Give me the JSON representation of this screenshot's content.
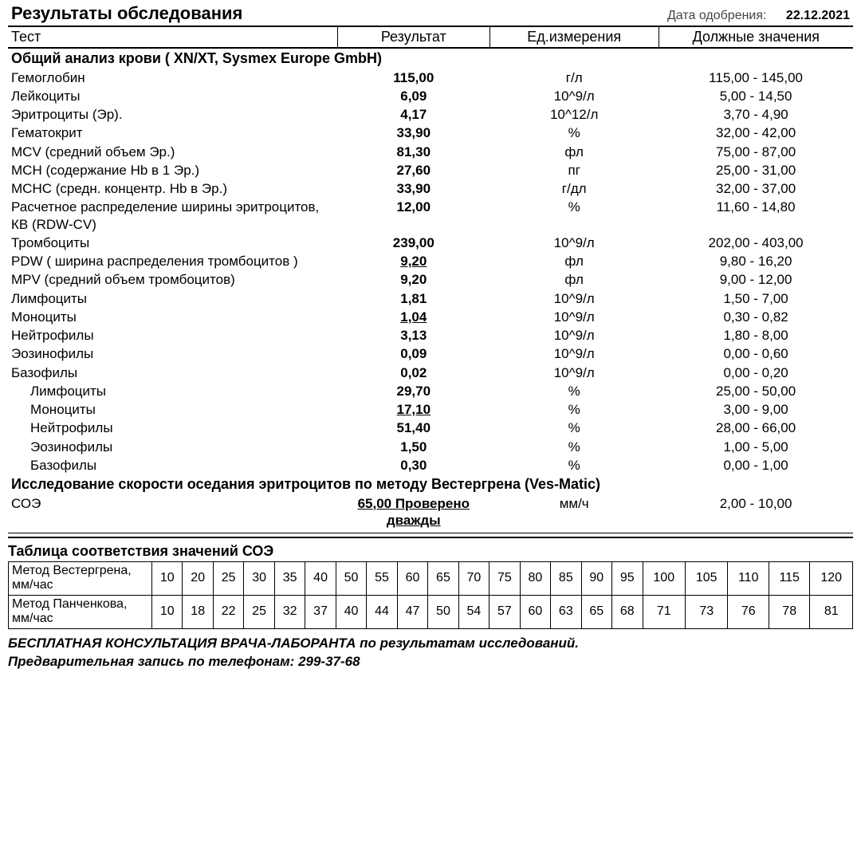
{
  "header": {
    "report_title": "Результаты обследования",
    "date_label": "Дата одобрения:",
    "date_value": "22.12.2021",
    "columns": {
      "test": "Тест",
      "result": "Результат",
      "unit": "Ед.измерения",
      "ref": "Должные значения"
    }
  },
  "sections": [
    {
      "title": "Общий анализ крови ( XN/XT, Sysmex  Europe GmbH)",
      "rows": [
        {
          "test": "Гемоглобин",
          "result": "115,00",
          "unit": "г/л",
          "ref": "115,00 - 145,00"
        },
        {
          "test": "Лейкоциты",
          "result": "6,09",
          "unit": "10^9/л",
          "ref": "5,00 - 14,50"
        },
        {
          "test": "Эритроциты (Эр).",
          "result": "4,17",
          "unit": "10^12/л",
          "ref": "3,70 - 4,90"
        },
        {
          "test": "Гематокрит",
          "result": "33,90",
          "unit": "%",
          "ref": "32,00 - 42,00"
        },
        {
          "test": "MCV (средний объем Эр.)",
          "result": "81,30",
          "unit": "фл",
          "ref": "75,00 - 87,00"
        },
        {
          "test": "MCH (содержание Hb в 1 Эр.)",
          "result": "27,60",
          "unit": "пг",
          "ref": "25,00 - 31,00"
        },
        {
          "test": "MCHC (средн. концентр. Hb в Эр.)",
          "result": "33,90",
          "unit": "г/дл",
          "ref": "32,00 - 37,00"
        },
        {
          "test": "Расчетное распределение ширины эритроцитов, КВ (RDW-CV)",
          "result": "12,00",
          "unit": "%",
          "ref": "11,60 - 14,80"
        },
        {
          "test": "Тромбоциты",
          "result": "239,00",
          "unit": "10^9/л",
          "ref": "202,00 - 403,00"
        },
        {
          "test": "PDW ( ширина распределения тромбоцитов )",
          "result": "9,20",
          "unit": "фл",
          "ref": "9,80 - 16,20",
          "flag": true
        },
        {
          "test": "MPV (средний объем тромбоцитов)",
          "result": "9,20",
          "unit": "фл",
          "ref": "9,00 - 12,00"
        },
        {
          "test": "Лимфоциты",
          "result": "1,81",
          "unit": "10^9/л",
          "ref": "1,50 - 7,00"
        },
        {
          "test": "Моноциты",
          "result": "1,04",
          "unit": "10^9/л",
          "ref": "0,30 - 0,82",
          "flag": true
        },
        {
          "test": "Нейтрофилы",
          "result": "3,13",
          "unit": "10^9/л",
          "ref": "1,80 - 8,00"
        },
        {
          "test": "Эозинофилы",
          "result": "0,09",
          "unit": "10^9/л",
          "ref": "0,00 - 0,60"
        },
        {
          "test": "Базофилы",
          "result": "0,02",
          "unit": "10^9/л",
          "ref": "0,00 - 0,20"
        },
        {
          "test": "Лимфоциты",
          "result": "29,70",
          "unit": "%",
          "ref": "25,00 - 50,00",
          "indent": true
        },
        {
          "test": "Моноциты",
          "result": "17,10",
          "unit": "%",
          "ref": "3,00 - 9,00",
          "indent": true,
          "flag": true
        },
        {
          "test": "Нейтрофилы",
          "result": "51,40",
          "unit": "%",
          "ref": "28,00 - 66,00",
          "indent": true
        },
        {
          "test": "Эозинофилы",
          "result": "1,50",
          "unit": "%",
          "ref": "1,00 - 5,00",
          "indent": true
        },
        {
          "test": "Базофилы",
          "result": "0,30",
          "unit": "%",
          "ref": "0,00 - 1,00",
          "indent": true
        }
      ]
    },
    {
      "title": "Исследование скорости оседания эритроцитов по методу Вестергрена (Ves-Matic)",
      "rows": [
        {
          "test": "СОЭ",
          "result": "65,00 Проверено дважды",
          "unit": "мм/ч",
          "ref": "2,00 - 10,00",
          "flag": true
        }
      ]
    }
  ],
  "corr": {
    "title": "Таблица соответствия значений СОЭ",
    "row1_label": "Метод Вестергрена, мм/час",
    "row2_label": "Метод Панченкова, мм/час",
    "row1": [
      "10",
      "20",
      "25",
      "30",
      "35",
      "40",
      "50",
      "55",
      "60",
      "65",
      "70",
      "75",
      "80",
      "85",
      "90",
      "95",
      "100",
      "105",
      "110",
      "115",
      "120"
    ],
    "row2": [
      "10",
      "18",
      "22",
      "25",
      "32",
      "37",
      "40",
      "44",
      "47",
      "50",
      "54",
      "57",
      "60",
      "63",
      "65",
      "68",
      "71",
      "73",
      "76",
      "78",
      "81"
    ]
  },
  "footer": {
    "line1": "БЕСПЛАТНАЯ КОНСУЛЬТАЦИЯ ВРАЧА-ЛАБОРАНТА по результатам исследований.",
    "line2": "Предварительная запись по телефонам: 299-37-68"
  }
}
